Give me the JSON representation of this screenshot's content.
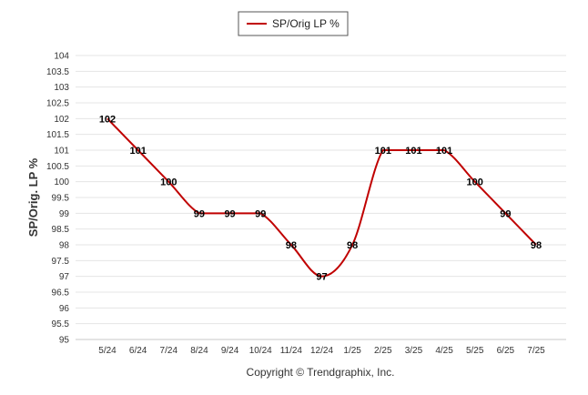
{
  "legend": {
    "label": "SP/Orig LP %",
    "color": "#c00000"
  },
  "footer": {
    "text": "Copyright © Trendgraphix, Inc."
  },
  "chart_data": {
    "type": "line",
    "title": "",
    "ylabel": "SP/Orig. LP %",
    "xlabel": "",
    "ylim": [
      95,
      104
    ],
    "ytick_step": 0.5,
    "grid": true,
    "legend_position": "top-center",
    "categories": [
      "5/24",
      "6/24",
      "7/24",
      "8/24",
      "9/24",
      "10/24",
      "11/24",
      "12/24",
      "1/25",
      "2/25",
      "3/25",
      "4/25",
      "5/25",
      "6/25",
      "7/25"
    ],
    "series": [
      {
        "name": "SP/Orig LP %",
        "color": "#c00000",
        "values": [
          102,
          101,
          100,
          99,
          99,
          99,
          98,
          97,
          98,
          101,
          101,
          101,
          100,
          99,
          98
        ],
        "data_labels": [
          "102",
          "101",
          "100",
          "99",
          "99",
          "99",
          "98",
          "97",
          "98",
          "101",
          "101",
          "101",
          "100",
          "99",
          "98"
        ]
      }
    ]
  }
}
